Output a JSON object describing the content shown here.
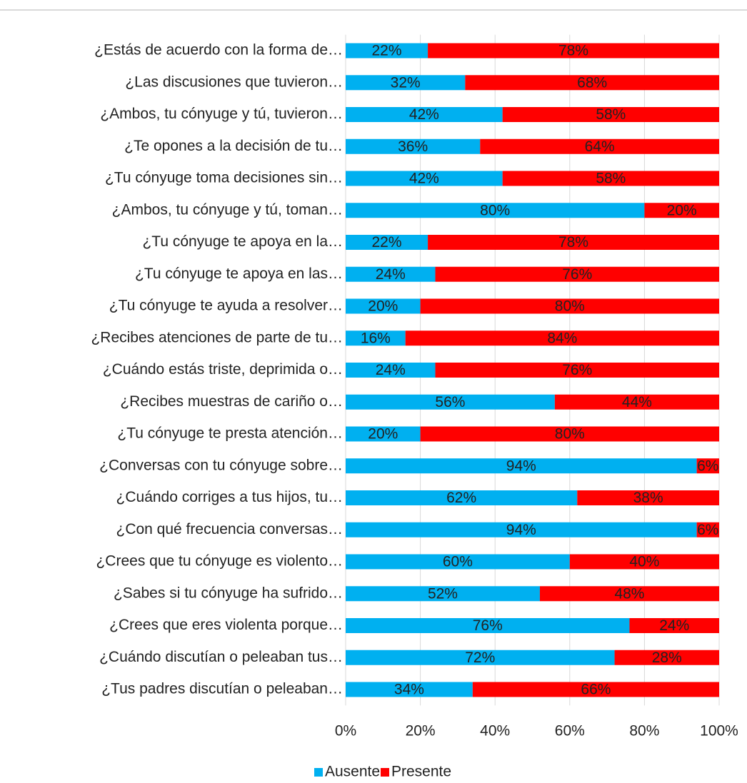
{
  "chart_data": {
    "type": "stacked-bar-horizontal",
    "categories": [
      "¿Estás de acuerdo con la forma de…",
      "¿Las discusiones que tuvieron…",
      "¿Ambos, tu cónyuge y tú, tuvieron…",
      "¿Te opones a la decisión de tu…",
      "¿Tu cónyuge toma decisiones sin…",
      "¿Ambos, tu cónyuge y tú, toman…",
      "¿Tu cónyuge te apoya en la…",
      "¿Tu cónyuge te apoya en las…",
      "¿Tu cónyuge te ayuda a resolver…",
      "¿Recibes atenciones de parte de tu…",
      "¿Cuándo estás triste, deprimida o…",
      "¿Recibes muestras de cariño o…",
      "¿Tu cónyuge te presta atención…",
      "¿Conversas con tu cónyuge sobre…",
      "¿Cuándo corriges a tus hijos, tu…",
      "¿Con qué frecuencia conversas…",
      "¿Crees que tu cónyuge es violento…",
      "¿Sabes si tu cónyuge ha sufrido…",
      "¿Crees que eres violenta porque…",
      "¿Cuándo discutían o peleaban tus…",
      "¿Tus padres discutían o peleaban…"
    ],
    "series": [
      {
        "name": "Ausente",
        "color": "#00b0f0",
        "values": [
          22,
          32,
          42,
          36,
          42,
          80,
          22,
          24,
          20,
          16,
          24,
          56,
          20,
          94,
          62,
          94,
          60,
          52,
          76,
          72,
          34
        ],
        "value_labels": [
          "22%",
          "32%",
          "42%",
          "36%",
          "42%",
          "80%",
          "22%",
          "24%",
          "20%",
          "16%",
          "24%",
          "56%",
          "20%",
          "94%",
          "62%",
          "94%",
          "60%",
          "52%",
          "76%",
          "72%",
          "34%"
        ]
      },
      {
        "name": "Presente",
        "color": "#ff0000",
        "values": [
          78,
          68,
          58,
          64,
          58,
          20,
          78,
          76,
          80,
          84,
          76,
          44,
          80,
          6,
          38,
          6,
          40,
          48,
          24,
          28,
          66
        ],
        "value_labels": [
          "78%",
          "68%",
          "58%",
          "64%",
          "58%",
          "20%",
          "78%",
          "76%",
          "80%",
          "84%",
          "76%",
          "44%",
          "80%",
          "6%",
          "38%",
          "6%",
          "40%",
          "48%",
          "24%",
          "28%",
          "66%"
        ]
      }
    ],
    "xlim": [
      0,
      100
    ],
    "xticks": [
      {
        "value": 0,
        "label": "0%"
      },
      {
        "value": 20,
        "label": "20%"
      },
      {
        "value": 40,
        "label": "40%"
      },
      {
        "value": 60,
        "label": "60%"
      },
      {
        "value": 80,
        "label": "80%"
      },
      {
        "value": 100,
        "label": "100%"
      }
    ],
    "grid": true,
    "legend": "bottom"
  }
}
